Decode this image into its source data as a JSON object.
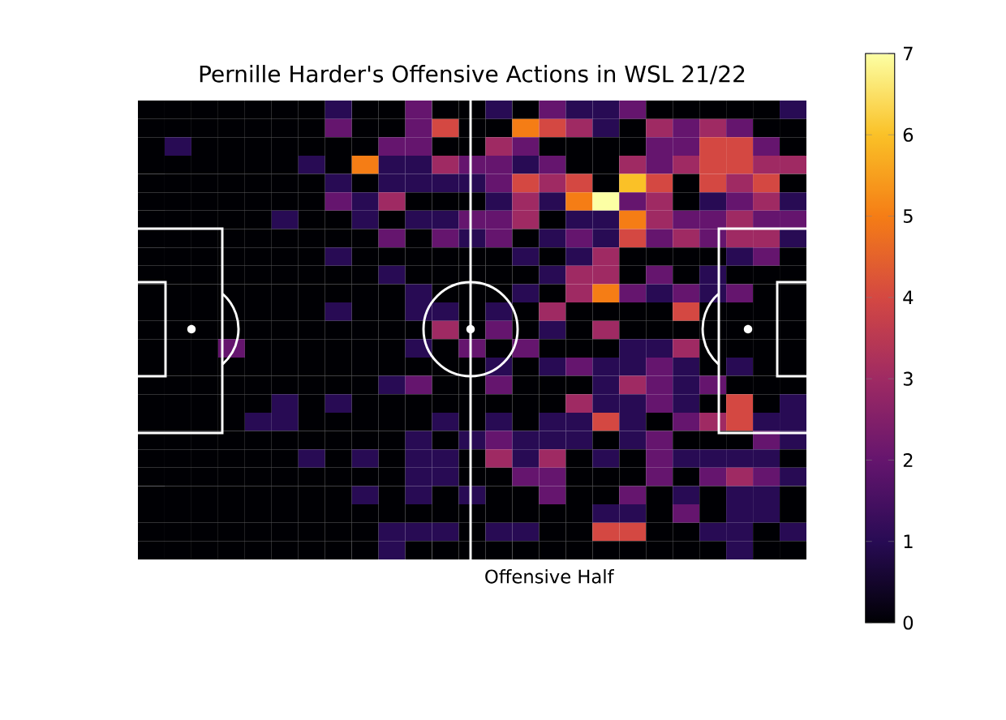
{
  "chart_data": {
    "type": "heatmap",
    "title": "Pernille Harder's Offensive Actions in WSL 21/22",
    "xlabel": "Offensive Half",
    "categories": [
      null,
      null,
      null,
      null,
      null,
      null,
      null,
      null,
      null,
      null,
      null,
      null,
      null,
      null,
      null,
      null,
      null,
      null,
      null,
      null,
      null,
      null,
      null,
      null,
      null
    ],
    "y_categories": [
      null,
      null,
      null,
      null,
      null,
      null,
      null,
      null,
      null,
      null,
      null,
      null,
      null,
      null,
      null,
      null,
      null,
      null,
      null,
      null,
      null,
      null,
      null,
      null,
      null
    ],
    "cells": [
      [
        0,
        0,
        0,
        0,
        0,
        0,
        0,
        1,
        0,
        0,
        2,
        0,
        0,
        1,
        0,
        2,
        1,
        1,
        2,
        0,
        0,
        0,
        0,
        0,
        1
      ],
      [
        0,
        0,
        0,
        0,
        0,
        0,
        0,
        2,
        0,
        0,
        2,
        4,
        0,
        0,
        5,
        4,
        3,
        1,
        0,
        3,
        2,
        3,
        2,
        0,
        0
      ],
      [
        0,
        1,
        0,
        0,
        0,
        0,
        0,
        0,
        0,
        2,
        2,
        0,
        0,
        3,
        2,
        0,
        0,
        0,
        0,
        2,
        2,
        4,
        4,
        2,
        0
      ],
      [
        0,
        0,
        0,
        0,
        0,
        0,
        1,
        0,
        5,
        1,
        1,
        3,
        2,
        2,
        1,
        2,
        0,
        0,
        3,
        2,
        3,
        4,
        4,
        3,
        3
      ],
      [
        0,
        0,
        0,
        0,
        0,
        0,
        0,
        1,
        0,
        1,
        1,
        1,
        1,
        2,
        4,
        3,
        4,
        0,
        6,
        4,
        0,
        4,
        3,
        4,
        0
      ],
      [
        0,
        0,
        0,
        0,
        0,
        0,
        0,
        2,
        1,
        3,
        0,
        0,
        0,
        1,
        3,
        1,
        5,
        7,
        2,
        3,
        0,
        1,
        2,
        3,
        1
      ],
      [
        0,
        0,
        0,
        0,
        0,
        1,
        0,
        0,
        1,
        0,
        1,
        1,
        2,
        2,
        3,
        0,
        1,
        1,
        5,
        3,
        2,
        2,
        3,
        2,
        2
      ],
      [
        0,
        0,
        0,
        0,
        0,
        0,
        0,
        0,
        0,
        2,
        0,
        2,
        1,
        2,
        0,
        1,
        2,
        1,
        4,
        2,
        3,
        2,
        3,
        3,
        1
      ],
      [
        0,
        0,
        0,
        0,
        0,
        0,
        0,
        1,
        0,
        0,
        0,
        0,
        0,
        0,
        1,
        0,
        1,
        3,
        0,
        0,
        0,
        0,
        1,
        2,
        0
      ],
      [
        0,
        0,
        0,
        0,
        0,
        0,
        0,
        0,
        0,
        1,
        0,
        0,
        0,
        0,
        0,
        1,
        3,
        3,
        0,
        2,
        0,
        1,
        0,
        0,
        0
      ],
      [
        0,
        0,
        0,
        0,
        0,
        0,
        0,
        0,
        0,
        0,
        1,
        0,
        0,
        0,
        1,
        0,
        3,
        5,
        2,
        1,
        2,
        1,
        2,
        0,
        0
      ],
      [
        0,
        0,
        0,
        0,
        0,
        0,
        0,
        1,
        0,
        0,
        1,
        1,
        0,
        1,
        0,
        3,
        0,
        0,
        0,
        0,
        4,
        0,
        0,
        0,
        0
      ],
      [
        0,
        0,
        0,
        0,
        0,
        0,
        0,
        0,
        0,
        0,
        0,
        3,
        0,
        2,
        0,
        1,
        0,
        3,
        0,
        0,
        0,
        0,
        0,
        0,
        0
      ],
      [
        0,
        0,
        0,
        2,
        0,
        0,
        0,
        0,
        0,
        0,
        1,
        0,
        2,
        0,
        2,
        0,
        0,
        0,
        1,
        1,
        3,
        0,
        0,
        0,
        0
      ],
      [
        0,
        0,
        0,
        0,
        0,
        0,
        0,
        0,
        0,
        0,
        0,
        0,
        0,
        1,
        0,
        1,
        2,
        1,
        1,
        2,
        1,
        0,
        1,
        0,
        0
      ],
      [
        0,
        0,
        0,
        0,
        0,
        0,
        0,
        0,
        0,
        1,
        2,
        0,
        0,
        2,
        0,
        0,
        0,
        1,
        3,
        2,
        1,
        2,
        0,
        0,
        0
      ],
      [
        0,
        0,
        0,
        0,
        0,
        1,
        0,
        1,
        0,
        0,
        0,
        0,
        0,
        0,
        0,
        0,
        3,
        1,
        1,
        2,
        1,
        0,
        4,
        0,
        1
      ],
      [
        0,
        0,
        0,
        0,
        1,
        1,
        0,
        0,
        0,
        0,
        0,
        1,
        0,
        1,
        0,
        1,
        1,
        4,
        1,
        0,
        2,
        3,
        4,
        1,
        1
      ],
      [
        0,
        0,
        0,
        0,
        0,
        0,
        0,
        0,
        0,
        0,
        1,
        0,
        1,
        2,
        1,
        1,
        1,
        0,
        1,
        2,
        0,
        0,
        0,
        2,
        1
      ],
      [
        0,
        0,
        0,
        0,
        0,
        0,
        1,
        0,
        1,
        0,
        1,
        1,
        0,
        3,
        1,
        3,
        0,
        1,
        0,
        2,
        1,
        1,
        1,
        1,
        0
      ],
      [
        0,
        0,
        0,
        0,
        0,
        0,
        0,
        0,
        0,
        0,
        1,
        1,
        0,
        0,
        2,
        2,
        0,
        0,
        0,
        2,
        0,
        2,
        3,
        2,
        1
      ],
      [
        0,
        0,
        0,
        0,
        0,
        0,
        0,
        0,
        1,
        0,
        1,
        0,
        1,
        0,
        0,
        2,
        0,
        0,
        2,
        0,
        1,
        0,
        1,
        1,
        0
      ],
      [
        0,
        0,
        0,
        0,
        0,
        0,
        0,
        0,
        0,
        0,
        0,
        0,
        0,
        0,
        0,
        0,
        0,
        1,
        1,
        0,
        2,
        0,
        1,
        1,
        0
      ],
      [
        0,
        0,
        0,
        0,
        0,
        0,
        0,
        0,
        0,
        1,
        1,
        1,
        0,
        1,
        1,
        0,
        0,
        4,
        4,
        0,
        0,
        1,
        1,
        0,
        1
      ],
      [
        0,
        0,
        0,
        0,
        0,
        0,
        0,
        0,
        0,
        1,
        0,
        0,
        0,
        0,
        0,
        0,
        0,
        0,
        0,
        0,
        0,
        0,
        1,
        0,
        0
      ]
    ],
    "clim": [
      0,
      7
    ],
    "cticks": [
      0,
      1,
      2,
      3,
      4,
      5,
      6,
      7
    ],
    "tick_labels": false
  }
}
